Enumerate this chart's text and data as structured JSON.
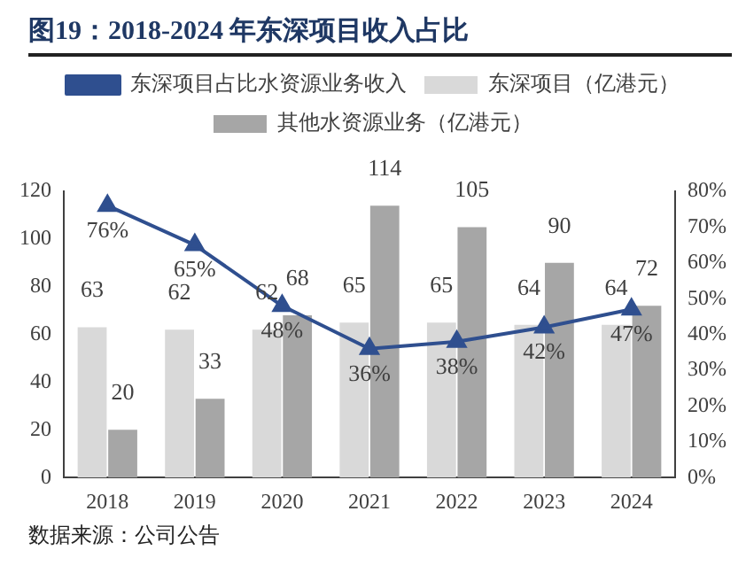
{
  "chart_data": {
    "type": "bar",
    "title": "图19：2018-2024 年东深项目收入占比",
    "categories": [
      "2018",
      "2019",
      "2020",
      "2021",
      "2022",
      "2023",
      "2024"
    ],
    "series": [
      {
        "name": "东深项目（亿港元）",
        "color": "#d9d9d9",
        "values": [
          63,
          62,
          62,
          65,
          65,
          64,
          64
        ],
        "value_labels": [
          "63",
          "62",
          "62",
          "65",
          "65",
          "64",
          "64"
        ]
      },
      {
        "name": "其他水资源业务（亿港元）",
        "color": "#a6a6a6",
        "values": [
          20,
          33,
          68,
          114,
          105,
          90,
          72
        ],
        "value_labels": [
          "20",
          "33",
          "68",
          "114",
          "105",
          "90",
          "72"
        ]
      },
      {
        "name": "东深项目占比水资源业务收入",
        "type": "line",
        "axis": "y2",
        "color": "#2f4f8f",
        "marker": "triangle",
        "values": [
          76,
          65,
          48,
          36,
          38,
          42,
          47
        ],
        "value_labels": [
          "76%",
          "65%",
          "48%",
          "36%",
          "38%",
          "42%",
          "47%"
        ]
      }
    ],
    "ylim": [
      0,
      120
    ],
    "yticks": [
      0,
      20,
      40,
      60,
      80,
      100,
      120
    ],
    "y2lim": [
      0,
      80
    ],
    "y2ticks": [
      {
        "value": 0,
        "label": "0%"
      },
      {
        "value": 10,
        "label": "10%"
      },
      {
        "value": 20,
        "label": "20%"
      },
      {
        "value": 30,
        "label": "30%"
      },
      {
        "value": 40,
        "label": "40%"
      },
      {
        "value": 50,
        "label": "50%"
      },
      {
        "value": 60,
        "label": "60%"
      },
      {
        "value": 70,
        "label": "70%"
      },
      {
        "value": 80,
        "label": "80%"
      }
    ],
    "grid": false,
    "legend": "top",
    "annotations": [
      "数据来源：公司公告"
    ]
  }
}
